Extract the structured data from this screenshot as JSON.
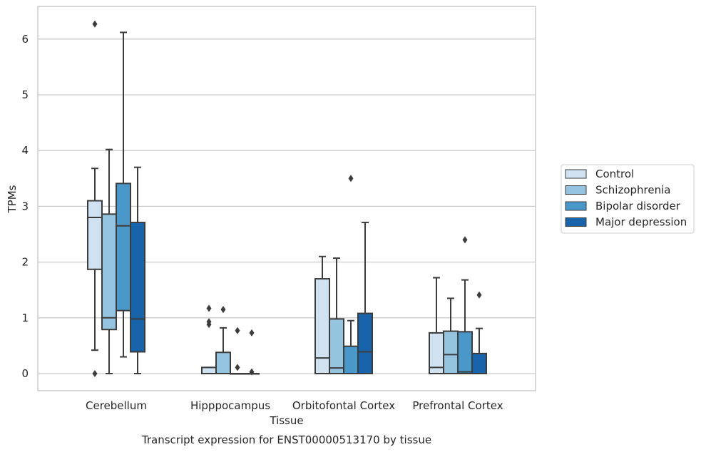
{
  "chart_data": {
    "type": "boxplot",
    "caption": "Transcript expression for ENST00000513170 by tissue",
    "xlabel": "Tissue",
    "ylabel": "TPMs",
    "ylim": [
      -0.3,
      6.6
    ],
    "yticks": [
      "0",
      "1",
      "2",
      "3",
      "4",
      "5",
      "6"
    ],
    "grid": "horizontal",
    "legend_position": "right",
    "categories": [
      "Cerebellum",
      "Hipppocampus",
      "Orbitofontal Cortex",
      "Prefrontal Cortex"
    ],
    "series": [
      {
        "name": "Control",
        "color": "#d0e1f2",
        "boxes": [
          {
            "whislo": 0.42,
            "q1": 1.87,
            "med": 2.8,
            "q3": 3.1,
            "whishi": 3.68,
            "fliers": [
              0.0,
              6.27
            ]
          },
          {
            "whislo": 0.0,
            "q1": 0.0,
            "med": 0.0,
            "q3": 0.11,
            "whishi": 0.11,
            "fliers": [
              0.88,
              0.93,
              1.17
            ]
          },
          {
            "whislo": 0.0,
            "q1": 0.0,
            "med": 0.28,
            "q3": 1.7,
            "whishi": 2.1,
            "fliers": []
          },
          {
            "whislo": 0.0,
            "q1": 0.0,
            "med": 0.11,
            "q3": 0.73,
            "whishi": 1.72,
            "fliers": []
          }
        ]
      },
      {
        "name": "Schizophrenia",
        "color": "#94c4df",
        "boxes": [
          {
            "whislo": 0.0,
            "q1": 0.79,
            "med": 1.0,
            "q3": 2.86,
            "whishi": 4.02,
            "fliers": []
          },
          {
            "whislo": 0.0,
            "q1": 0.0,
            "med": 0.0,
            "q3": 0.38,
            "whishi": 0.82,
            "fliers": [
              1.15
            ]
          },
          {
            "whislo": 0.0,
            "q1": 0.0,
            "med": 0.1,
            "q3": 0.98,
            "whishi": 2.07,
            "fliers": []
          },
          {
            "whislo": 0.0,
            "q1": 0.0,
            "med": 0.34,
            "q3": 0.76,
            "whishi": 1.35,
            "fliers": []
          }
        ]
      },
      {
        "name": "Bipolar disorder",
        "color": "#4a98c9",
        "boxes": [
          {
            "whislo": 0.3,
            "q1": 1.13,
            "med": 2.65,
            "q3": 3.41,
            "whishi": 6.12,
            "fliers": []
          },
          {
            "whislo": 0.0,
            "q1": 0.0,
            "med": 0.0,
            "q3": 0.0,
            "whishi": 0.0,
            "fliers": [
              0.11,
              0.77
            ]
          },
          {
            "whislo": 0.0,
            "q1": 0.0,
            "med": 0.0,
            "q3": 0.49,
            "whishi": 0.95,
            "fliers": [
              3.5
            ]
          },
          {
            "whislo": 0.0,
            "q1": 0.0,
            "med": 0.03,
            "q3": 0.75,
            "whishi": 1.68,
            "fliers": [
              2.4
            ]
          }
        ]
      },
      {
        "name": "Major depression",
        "color": "#1764ab",
        "boxes": [
          {
            "whislo": 0.0,
            "q1": 0.39,
            "med": 0.98,
            "q3": 2.71,
            "whishi": 3.7,
            "fliers": []
          },
          {
            "whislo": 0.0,
            "q1": 0.0,
            "med": 0.0,
            "q3": 0.0,
            "whishi": 0.0,
            "fliers": [
              0.03,
              0.73
            ]
          },
          {
            "whislo": 0.0,
            "q1": 0.0,
            "med": 0.39,
            "q3": 1.08,
            "whishi": 2.71,
            "fliers": []
          },
          {
            "whislo": 0.0,
            "q1": 0.0,
            "med": 0.0,
            "q3": 0.36,
            "whishi": 0.81,
            "fliers": [
              1.41
            ]
          }
        ]
      }
    ]
  }
}
